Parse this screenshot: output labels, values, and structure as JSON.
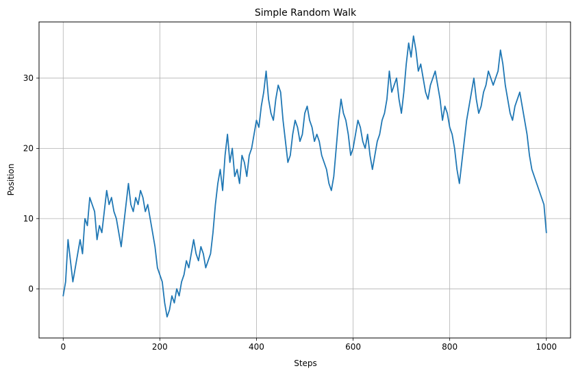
{
  "chart_data": {
    "type": "line",
    "title": "Simple Random Walk",
    "xlabel": "Steps",
    "ylabel": "Position",
    "xlim": [
      -50,
      1050
    ],
    "ylim": [
      -7,
      38
    ],
    "xticks": [
      0,
      200,
      400,
      600,
      800,
      1000
    ],
    "yticks": [
      0,
      10,
      20,
      30
    ],
    "grid": true,
    "line_color": "#1f77b4",
    "series": [
      {
        "x": [
          0,
          5,
          10,
          15,
          20,
          25,
          30,
          35,
          40,
          45,
          50,
          55,
          60,
          65,
          70,
          75,
          80,
          85,
          90,
          95,
          100,
          105,
          110,
          115,
          120,
          125,
          130,
          135,
          140,
          145,
          150,
          155,
          160,
          165,
          170,
          175,
          180,
          185,
          190,
          195,
          200,
          205,
          210,
          215,
          220,
          225,
          230,
          235,
          240,
          245,
          250,
          255,
          260,
          265,
          270,
          275,
          280,
          285,
          290,
          295,
          300,
          305,
          310,
          315,
          320,
          325,
          330,
          335,
          340,
          345,
          350,
          355,
          360,
          365,
          370,
          375,
          380,
          385,
          390,
          395,
          400,
          405,
          410,
          415,
          420,
          425,
          430,
          435,
          440,
          445,
          450,
          455,
          460,
          465,
          470,
          475,
          480,
          485,
          490,
          495,
          500,
          505,
          510,
          515,
          520,
          525,
          530,
          535,
          540,
          545,
          550,
          555,
          560,
          565,
          570,
          575,
          580,
          585,
          590,
          595,
          600,
          605,
          610,
          615,
          620,
          625,
          630,
          635,
          640,
          645,
          650,
          655,
          660,
          665,
          670,
          675,
          680,
          685,
          690,
          695,
          700,
          705,
          710,
          715,
          720,
          725,
          730,
          735,
          740,
          745,
          750,
          755,
          760,
          765,
          770,
          775,
          780,
          785,
          790,
          795,
          800,
          805,
          810,
          815,
          820,
          825,
          830,
          835,
          840,
          845,
          850,
          855,
          860,
          865,
          870,
          875,
          880,
          885,
          890,
          895,
          900,
          905,
          910,
          915,
          920,
          925,
          930,
          935,
          940,
          945,
          950,
          955,
          960,
          965,
          970,
          975,
          980,
          985,
          990,
          995,
          1000
        ],
        "values": [
          -1,
          1,
          7,
          4,
          1,
          3,
          5,
          7,
          5,
          10,
          9,
          13,
          12,
          11,
          7,
          9,
          8,
          11,
          14,
          12,
          13,
          11,
          10,
          8,
          6,
          9,
          12,
          15,
          12,
          11,
          13,
          12,
          14,
          13,
          11,
          12,
          10,
          8,
          6,
          3,
          2,
          1,
          -2,
          -4,
          -3,
          -1,
          -2,
          0,
          -1,
          1,
          2,
          4,
          3,
          5,
          7,
          5,
          4,
          6,
          5,
          3,
          4,
          5,
          8,
          12,
          15,
          17,
          14,
          19,
          22,
          18,
          20,
          16,
          17,
          15,
          19,
          18,
          16,
          19,
          20,
          22,
          24,
          23,
          26,
          28,
          31,
          27,
          25,
          24,
          27,
          29,
          28,
          24,
          21,
          18,
          19,
          22,
          24,
          23,
          21,
          22,
          25,
          26,
          24,
          23,
          21,
          22,
          21,
          19,
          18,
          17,
          15,
          14,
          16,
          20,
          24,
          27,
          25,
          24,
          22,
          19,
          20,
          22,
          24,
          23,
          21,
          20,
          22,
          19,
          17,
          19,
          21,
          22,
          24,
          25,
          27,
          31,
          28,
          29,
          30,
          27,
          25,
          28,
          32,
          35,
          33,
          36,
          34,
          31,
          32,
          30,
          28,
          27,
          29,
          30,
          31,
          29,
          27,
          24,
          26,
          25,
          23,
          22,
          20,
          17,
          15,
          18,
          21,
          24,
          26,
          28,
          30,
          27,
          25,
          26,
          28,
          29,
          31,
          30,
          29,
          30,
          31,
          34,
          32,
          29,
          27,
          25,
          24,
          26,
          27,
          28,
          26,
          24,
          22,
          19,
          17,
          16,
          15,
          14,
          13,
          12,
          8
        ]
      }
    ]
  }
}
